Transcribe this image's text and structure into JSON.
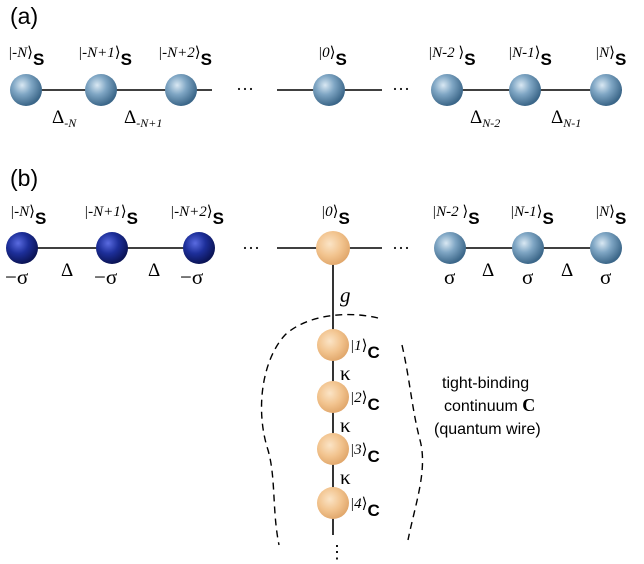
{
  "panel_a": {
    "label": "(a)",
    "kets": [
      {
        "bra": "|",
        "inner": "-N",
        "close": "⟩",
        "sub": "S"
      },
      {
        "bra": "|",
        "inner": "-N+1",
        "close": "⟩",
        "sub": "S"
      },
      {
        "bra": "|",
        "inner": "-N+2",
        "close": "⟩",
        "sub": "S"
      },
      {
        "bra": "|",
        "inner": "0",
        "close": "⟩",
        "sub": "S"
      },
      {
        "bra": "|",
        "inner": "N-2 ",
        "close": "⟩",
        "sub": "S"
      },
      {
        "bra": "|",
        "inner": "N-1",
        "close": "⟩",
        "sub": "S"
      },
      {
        "bra": "|",
        "inner": "N",
        "close": "⟩",
        "sub": "S"
      }
    ],
    "gaps": [
      {
        "base": "Δ",
        "sub": "-N"
      },
      {
        "base": "Δ",
        "sub": "-N+1"
      },
      {
        "base": "Δ",
        "sub": "N-2"
      },
      {
        "base": "Δ",
        "sub": "N-1"
      }
    ],
    "ellipsis": "···"
  },
  "panel_b": {
    "label": "(b)",
    "kets": [
      {
        "bra": "|",
        "inner": "-N",
        "close": "⟩",
        "sub": "S"
      },
      {
        "bra": "|",
        "inner": "-N+1",
        "close": "⟩",
        "sub": "S"
      },
      {
        "bra": "|",
        "inner": "-N+2",
        "close": "⟩",
        "sub": "S"
      },
      {
        "bra": "|",
        "inner": "0",
        "close": "⟩",
        "sub": "S"
      },
      {
        "bra": "|",
        "inner": "N-2 ",
        "close": "⟩",
        "sub": "S"
      },
      {
        "bra": "|",
        "inner": "N-1",
        "close": "⟩",
        "sub": "S"
      },
      {
        "bra": "|",
        "inner": "N",
        "close": "⟩",
        "sub": "S"
      }
    ],
    "sigma_left": [
      "−σ",
      "−σ",
      "−σ"
    ],
    "sigma_right": [
      "σ",
      "σ",
      "σ"
    ],
    "delta_left": [
      "Δ",
      "Δ"
    ],
    "delta_right": [
      "Δ",
      "Δ"
    ],
    "coupling": "g",
    "wire_kets": [
      {
        "bra": "|",
        "inner": "1",
        "close": "⟩",
        "sub": "C"
      },
      {
        "bra": "|",
        "inner": "2",
        "close": "⟩",
        "sub": "C"
      },
      {
        "bra": "|",
        "inner": "3",
        "close": "⟩",
        "sub": "C"
      },
      {
        "bra": "|",
        "inner": "4",
        "close": "⟩",
        "sub": "C"
      }
    ],
    "kappa": [
      "κ",
      "κ",
      "κ"
    ],
    "continuum_lines": [
      "tight-binding",
      "continuum ",
      "(quantum wire)"
    ],
    "continuum_symbol": "C",
    "ellipsis": "···",
    "vertical_ellipsis": "⋮"
  },
  "colors": {
    "light_sphere": "#7fa6c4",
    "dark_sphere": "#1d2f9a",
    "wire_sphere": "#f2c48f"
  }
}
